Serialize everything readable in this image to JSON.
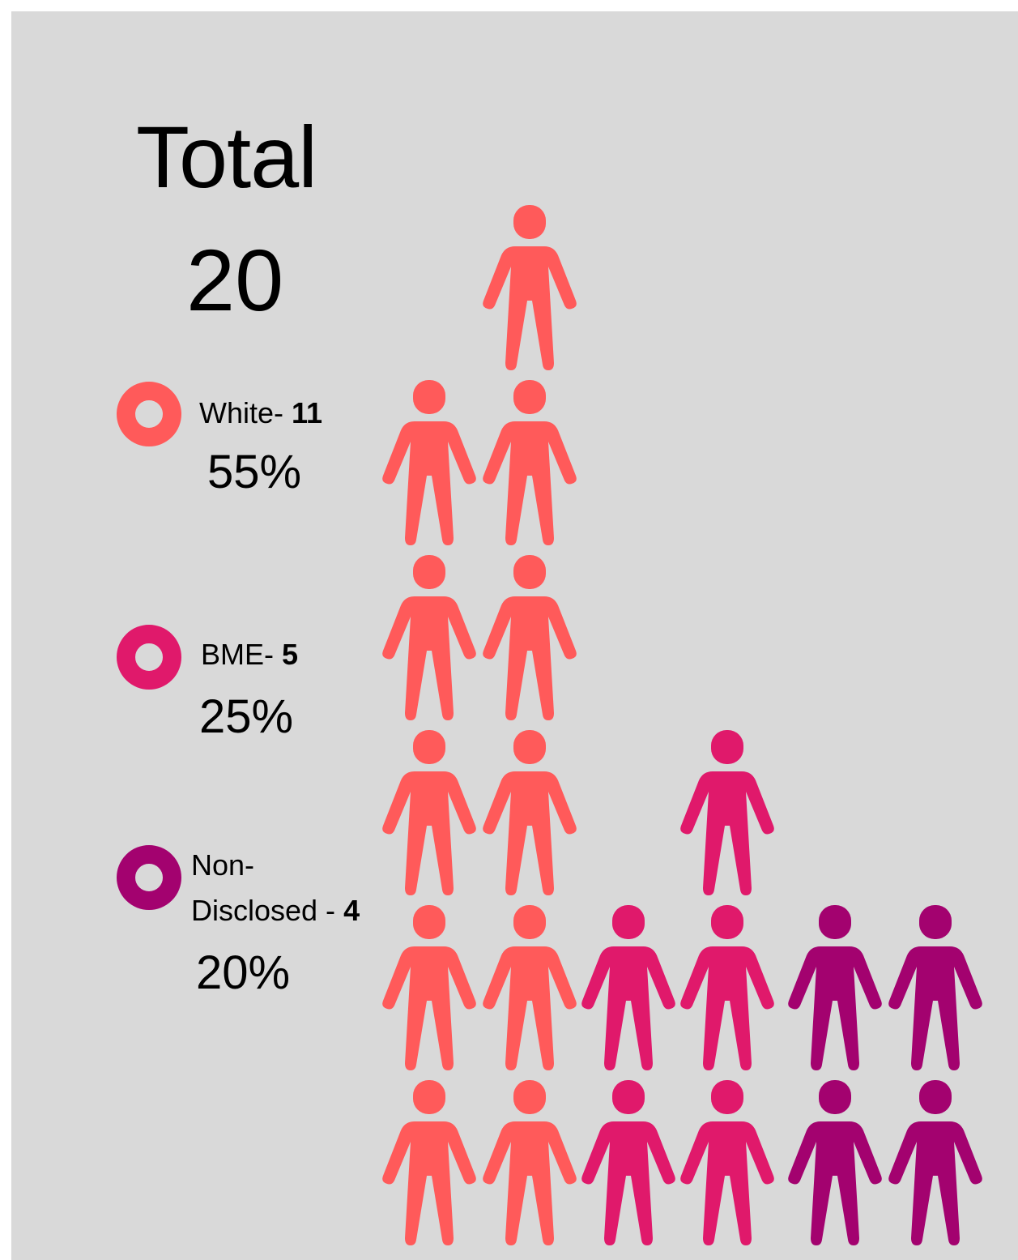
{
  "colors": {
    "background": "#d9d9d9",
    "white": "#ff5a5a",
    "bme": "#e0196b",
    "non_disclosed": "#a3026f"
  },
  "header": {
    "title": "Total",
    "total": "20"
  },
  "legend": [
    {
      "label": "White- ",
      "count": "11",
      "percent": "55%",
      "color": "#ff5a5a"
    },
    {
      "label": "BME- ",
      "count": "5",
      "percent": "25%",
      "color": "#e0196b"
    },
    {
      "label_line1": "Non-",
      "label_line2": "Disclosed - ",
      "count": "4",
      "percent": "20%",
      "color": "#a3026f"
    }
  ],
  "chart_data": {
    "type": "pictograph",
    "unit": "person icon = 1",
    "total": 20,
    "categories": [
      "White",
      "BME",
      "Non-Disclosed"
    ],
    "values": [
      11,
      5,
      4
    ],
    "percent": [
      55,
      25,
      20
    ],
    "columns": [
      {
        "category": "White",
        "count": 5
      },
      {
        "category": "White",
        "count": 6
      },
      {
        "category": "BME",
        "count": 2
      },
      {
        "category": "BME",
        "count": 3
      },
      {
        "category": "Non-Disclosed",
        "count": 2
      },
      {
        "category": "Non-Disclosed",
        "count": 2
      }
    ]
  }
}
